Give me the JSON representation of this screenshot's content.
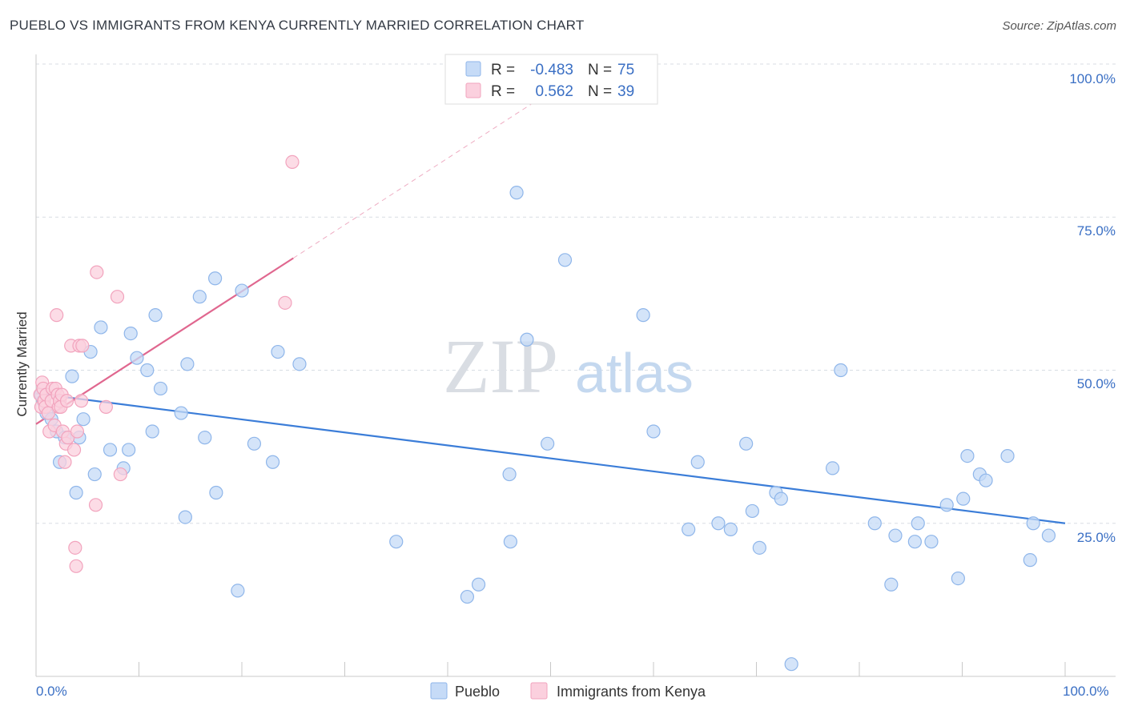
{
  "title": "PUEBLO VS IMMIGRANTS FROM KENYA CURRENTLY MARRIED CORRELATION CHART",
  "source": "Source: ZipAtlas.com",
  "chart_data": {
    "type": "scatter",
    "ylabel": "Currently Married",
    "xlim": [
      0,
      100
    ],
    "ylim": [
      0,
      100
    ],
    "x_tick_labels": [
      "0.0%",
      "100.0%"
    ],
    "y_tick_labels": [
      "25.0%",
      "50.0%",
      "75.0%",
      "100.0%"
    ],
    "y_ticks": [
      25,
      50,
      75,
      100
    ],
    "x_minor_ticks": [
      10,
      20,
      30,
      40,
      50,
      60,
      70,
      80,
      90,
      100
    ],
    "grid": true,
    "watermark": {
      "zip": "ZIP",
      "atlas": "atlas"
    },
    "legend_stats": [
      {
        "r_label": "R =",
        "r_value": "-0.483",
        "n_label": "N =",
        "n_value": "75",
        "color": "#8fb6ea",
        "fill": "#c6dbf7"
      },
      {
        "r_label": "R =",
        "r_value": "0.562",
        "n_label": "N =",
        "n_value": "39",
        "color": "#f2a3bd",
        "fill": "#fbd0de"
      }
    ],
    "series": [
      {
        "name": "Pueblo",
        "color": "#3b7dd8",
        "stroke": "#8fb6ea",
        "fill": "#c6dbf7",
        "trend": {
          "x1": 0,
          "y1": 46.2,
          "x2": 100,
          "y2": 25.0
        },
        "points": [
          [
            0.5,
            46
          ],
          [
            0.7,
            45
          ],
          [
            1.0,
            43
          ],
          [
            1.5,
            42
          ],
          [
            2.0,
            40
          ],
          [
            2.3,
            35
          ],
          [
            2.8,
            39
          ],
          [
            3.5,
            49
          ],
          [
            3.9,
            30
          ],
          [
            4.2,
            39
          ],
          [
            4.6,
            42
          ],
          [
            5.3,
            53
          ],
          [
            5.7,
            33
          ],
          [
            6.3,
            57
          ],
          [
            7.2,
            37
          ],
          [
            8.5,
            34
          ],
          [
            9.0,
            37
          ],
          [
            9.2,
            56
          ],
          [
            9.8,
            52
          ],
          [
            10.8,
            50
          ],
          [
            11.3,
            40
          ],
          [
            11.6,
            59
          ],
          [
            12.1,
            47
          ],
          [
            14.1,
            43
          ],
          [
            14.5,
            26
          ],
          [
            14.7,
            51
          ],
          [
            15.9,
            62
          ],
          [
            16.4,
            39
          ],
          [
            17.4,
            65
          ],
          [
            17.5,
            30
          ],
          [
            19.6,
            14
          ],
          [
            20.0,
            63
          ],
          [
            21.2,
            38
          ],
          [
            23.0,
            35
          ],
          [
            23.5,
            53
          ],
          [
            25.6,
            51
          ],
          [
            35.0,
            22
          ],
          [
            41.9,
            13
          ],
          [
            43.0,
            15
          ],
          [
            46.0,
            33
          ],
          [
            46.1,
            22
          ],
          [
            46.7,
            79
          ],
          [
            47.7,
            55
          ],
          [
            49.7,
            38
          ],
          [
            51.4,
            68
          ],
          [
            59.0,
            59
          ],
          [
            60.0,
            40
          ],
          [
            63.4,
            24
          ],
          [
            64.3,
            35
          ],
          [
            66.3,
            25
          ],
          [
            67.5,
            24
          ],
          [
            69.0,
            38
          ],
          [
            69.6,
            27
          ],
          [
            70.3,
            21
          ],
          [
            71.9,
            30
          ],
          [
            72.4,
            29
          ],
          [
            73.4,
            2
          ],
          [
            77.4,
            34
          ],
          [
            78.2,
            50
          ],
          [
            81.5,
            25
          ],
          [
            83.1,
            15
          ],
          [
            83.5,
            23
          ],
          [
            85.4,
            22
          ],
          [
            85.7,
            25
          ],
          [
            87.0,
            22
          ],
          [
            88.5,
            28
          ],
          [
            89.6,
            16
          ],
          [
            90.1,
            29
          ],
          [
            90.5,
            36
          ],
          [
            91.7,
            33
          ],
          [
            92.3,
            32
          ],
          [
            94.4,
            36
          ],
          [
            96.6,
            19
          ],
          [
            96.9,
            25
          ],
          [
            98.4,
            23
          ]
        ]
      },
      {
        "name": "Immigrants from Kenya",
        "color": "#e0678f",
        "stroke": "#f2a3bd",
        "fill": "#fbd0de",
        "trend": {
          "x1": 0,
          "y1": 41.2,
          "x2": 25,
          "y2": 68.3
        },
        "trend_dashed_to": {
          "x": 50,
          "y": 95.5
        },
        "points": [
          [
            0.4,
            46
          ],
          [
            0.5,
            44
          ],
          [
            0.6,
            48
          ],
          [
            0.7,
            47
          ],
          [
            0.8,
            45
          ],
          [
            0.9,
            44
          ],
          [
            1.0,
            46
          ],
          [
            1.2,
            43
          ],
          [
            1.3,
            40
          ],
          [
            1.5,
            45
          ],
          [
            1.6,
            47
          ],
          [
            1.8,
            41
          ],
          [
            1.9,
            47
          ],
          [
            2.0,
            59
          ],
          [
            2.1,
            46
          ],
          [
            2.2,
            44
          ],
          [
            2.3,
            45
          ],
          [
            2.4,
            44
          ],
          [
            2.5,
            46
          ],
          [
            2.6,
            40
          ],
          [
            2.8,
            35
          ],
          [
            2.9,
            38
          ],
          [
            3.0,
            45
          ],
          [
            3.1,
            39
          ],
          [
            3.4,
            54
          ],
          [
            3.7,
            37
          ],
          [
            3.8,
            21
          ],
          [
            3.9,
            18
          ],
          [
            4.0,
            40
          ],
          [
            4.2,
            54
          ],
          [
            4.4,
            45
          ],
          [
            4.5,
            54
          ],
          [
            5.8,
            28
          ],
          [
            5.9,
            66
          ],
          [
            6.8,
            44
          ],
          [
            7.9,
            62
          ],
          [
            8.2,
            33
          ],
          [
            24.2,
            61
          ],
          [
            24.9,
            84
          ]
        ]
      }
    ]
  }
}
